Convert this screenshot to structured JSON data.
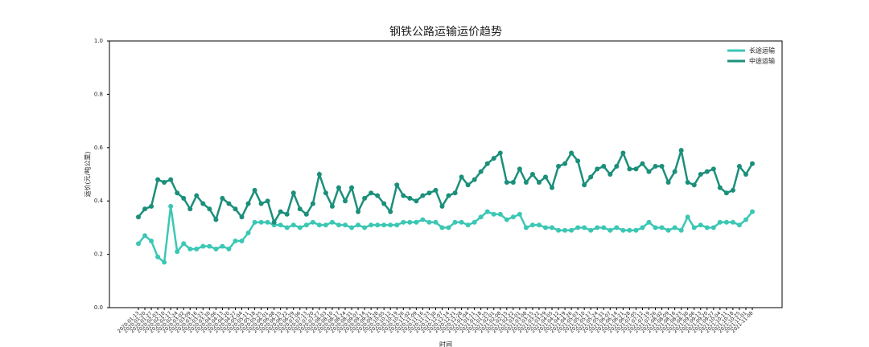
{
  "chart_data": {
    "type": "line",
    "title": "钢铁公路运输运价趋势",
    "xlabel": "时间",
    "ylabel": "运价(元/吨公里)",
    "categories": [
      "2020-01-13",
      "2020-01-20",
      "2020-01-27",
      "2020-02-03",
      "2020-02-10",
      "2020-02-17",
      "2020-02-24",
      "2020-03-02",
      "2020-03-09",
      "2020-03-16",
      "2020-03-23",
      "2020-03-30",
      "2020-04-06",
      "2020-04-13",
      "2020-04-20",
      "2020-04-27",
      "2020-05-04",
      "2020-05-11",
      "2020-05-18",
      "2020-05-25",
      "2020-06-01",
      "2020-06-08",
      "2020-06-15",
      "2020-06-22",
      "2020-06-29",
      "2020-07-06",
      "2020-07-13",
      "2020-07-20",
      "2020-07-27",
      "2020-08-03",
      "2020-08-10",
      "2020-08-17",
      "2020-08-24",
      "2020-08-31",
      "2020-09-07",
      "2020-09-14",
      "2020-09-21",
      "2020-09-28",
      "2020-10-05",
      "2020-10-12",
      "2020-10-19",
      "2020-10-26",
      "2020-11-02",
      "2020-11-09",
      "2020-11-16",
      "2020-11-23",
      "2020-11-30",
      "2020-12-07",
      "2020-12-14",
      "2020-12-21",
      "2020-12-28",
      "2021-01-04",
      "2021-01-11",
      "2021-01-18",
      "2021-01-25",
      "2021-02-01",
      "2021-02-08",
      "2021-02-15",
      "2021-02-22",
      "2021-03-01",
      "2021-03-08",
      "2021-03-15",
      "2021-03-22",
      "2021-03-29",
      "2021-04-05",
      "2021-04-12",
      "2021-04-19",
      "2021-04-26",
      "2021-05-03",
      "2021-05-10",
      "2021-05-17",
      "2021-05-24",
      "2021-05-31",
      "2021-06-07",
      "2021-06-14",
      "2021-06-21",
      "2021-06-28",
      "2021-07-05",
      "2021-07-12",
      "2021-07-19",
      "2021-07-26",
      "2021-08-02",
      "2021-08-09",
      "2021-08-16",
      "2021-08-23",
      "2021-08-30",
      "2021-09-06",
      "2021-09-13",
      "2021-09-20",
      "2021-09-27",
      "2021-10-04",
      "2021-10-11",
      "2021-10-18",
      "2021-10-25",
      "2021-11-01",
      "2021-11-08"
    ],
    "series": [
      {
        "name": "长途运输",
        "color": "#3cc7b4",
        "values": [
          0.24,
          0.27,
          0.25,
          0.19,
          0.17,
          0.38,
          0.21,
          0.24,
          0.22,
          0.22,
          0.23,
          0.23,
          0.22,
          0.23,
          0.22,
          0.25,
          0.25,
          0.28,
          0.32,
          0.32,
          0.32,
          0.31,
          0.31,
          0.3,
          0.31,
          0.3,
          0.31,
          0.32,
          0.31,
          0.31,
          0.32,
          0.31,
          0.31,
          0.3,
          0.31,
          0.3,
          0.31,
          0.31,
          0.31,
          0.31,
          0.31,
          0.32,
          0.32,
          0.32,
          0.33,
          0.32,
          0.32,
          0.3,
          0.3,
          0.32,
          0.32,
          0.31,
          0.32,
          0.34,
          0.36,
          0.35,
          0.35,
          0.33,
          0.34,
          0.35,
          0.3,
          0.31,
          0.31,
          0.3,
          0.3,
          0.29,
          0.29,
          0.29,
          0.3,
          0.3,
          0.29,
          0.3,
          0.3,
          0.29,
          0.3,
          0.29,
          0.29,
          0.29,
          0.3,
          0.32,
          0.3,
          0.3,
          0.29,
          0.3,
          0.29,
          0.34,
          0.3,
          0.31,
          0.3,
          0.3,
          0.32,
          0.32,
          0.32,
          0.31,
          0.33,
          0.36
        ]
      },
      {
        "name": "中途运输",
        "color": "#1b8f7a",
        "values": [
          0.34,
          0.37,
          0.38,
          0.48,
          0.47,
          0.48,
          0.43,
          0.41,
          0.37,
          0.42,
          0.39,
          0.37,
          0.33,
          0.41,
          0.39,
          0.37,
          0.34,
          0.39,
          0.44,
          0.39,
          0.4,
          0.32,
          0.36,
          0.35,
          0.43,
          0.37,
          0.35,
          0.39,
          0.5,
          0.43,
          0.38,
          0.45,
          0.4,
          0.45,
          0.36,
          0.41,
          0.43,
          0.42,
          0.39,
          0.36,
          0.46,
          0.42,
          0.41,
          0.4,
          0.42,
          0.43,
          0.44,
          0.38,
          0.42,
          0.43,
          0.49,
          0.46,
          0.48,
          0.51,
          0.54,
          0.56,
          0.58,
          0.47,
          0.47,
          0.52,
          0.47,
          0.5,
          0.47,
          0.49,
          0.45,
          0.53,
          0.54,
          0.58,
          0.55,
          0.46,
          0.49,
          0.52,
          0.53,
          0.5,
          0.53,
          0.58,
          0.52,
          0.52,
          0.54,
          0.51,
          0.53,
          0.53,
          0.47,
          0.51,
          0.59,
          0.47,
          0.46,
          0.5,
          0.51,
          0.52,
          0.45,
          0.43,
          0.44,
          0.53,
          0.5,
          0.54
        ]
      }
    ],
    "ylim": [
      0,
      1
    ],
    "yticks": [
      {
        "value": 0,
        "label": "0.0"
      },
      0.2,
      0.4,
      0.6,
      0.8,
      {
        "value": 1,
        "label": "1.0"
      }
    ],
    "grid": false,
    "legend": "upper right"
  }
}
